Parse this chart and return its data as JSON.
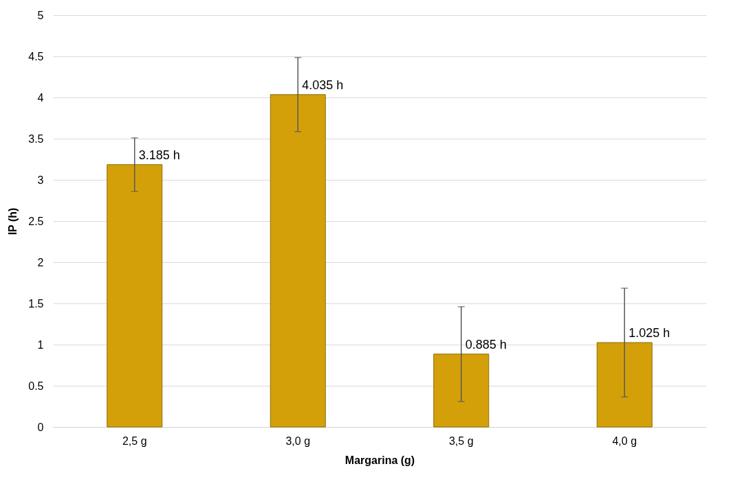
{
  "chart_data": {
    "type": "bar",
    "xlabel": "Margarina (g)",
    "ylabel": "IP (h)",
    "categories": [
      "2,5 g",
      "3,0 g",
      "3,5 g",
      "4,0 g"
    ],
    "values": [
      3.185,
      4.035,
      0.885,
      1.025
    ],
    "errors": [
      0.325,
      0.45,
      0.575,
      0.66
    ],
    "value_labels": [
      "3.185 h",
      "4.035 h",
      "0.885 h",
      "1.025 h"
    ],
    "color": "#d4a00a",
    "ylim": [
      0,
      5
    ],
    "yticks": [
      0,
      0.5,
      1,
      1.5,
      2,
      2.5,
      3,
      3.5,
      4,
      4.5,
      5
    ],
    "grid": "y"
  }
}
